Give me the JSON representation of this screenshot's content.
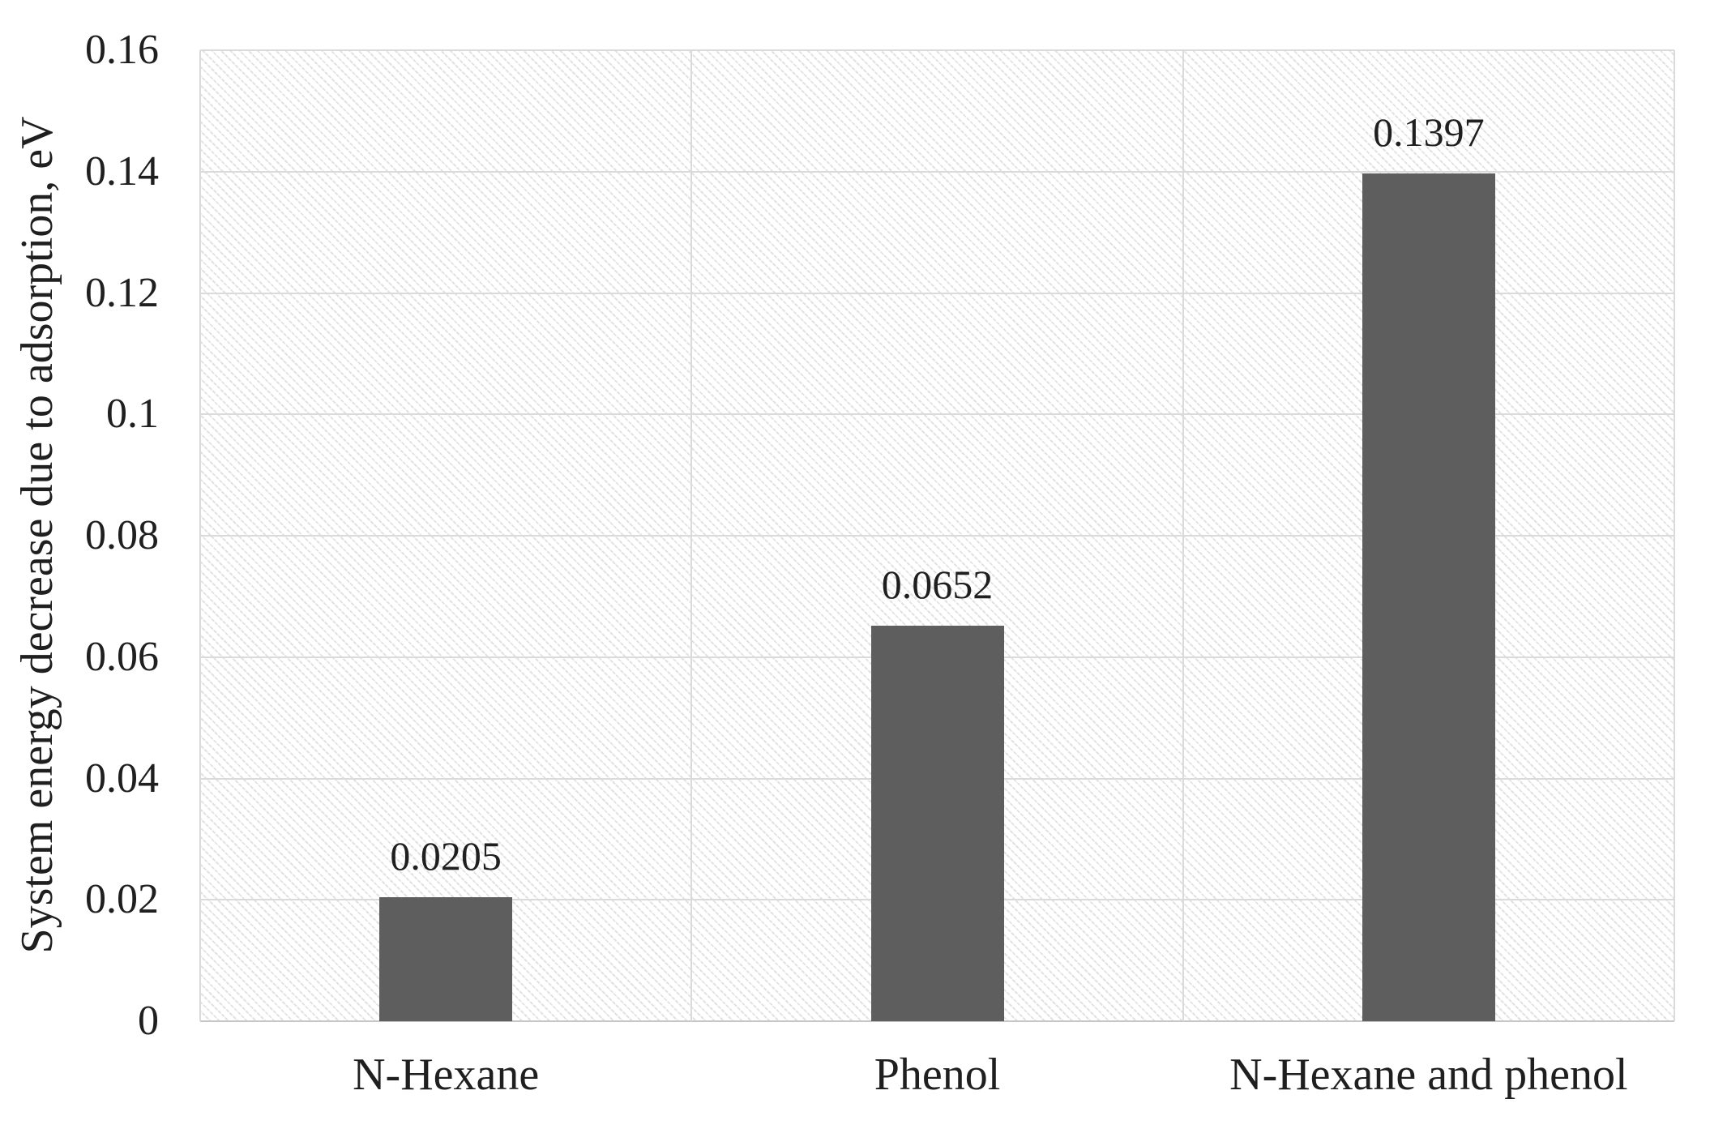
{
  "chart_data": {
    "type": "bar",
    "title": "",
    "xlabel": "",
    "ylabel": "System energy decrease due to adsorption, eV",
    "categories": [
      "N-Hexane",
      "Phenol",
      "N-Hexane and phenol"
    ],
    "values": [
      0.0205,
      0.0652,
      0.1397
    ],
    "value_labels": [
      "0.0205",
      "0.0652",
      "0.1397"
    ],
    "ylim": [
      0,
      0.16
    ],
    "ytick_labels": [
      "0",
      "0.02",
      "0.04",
      "0.06",
      "0.08",
      "0.1",
      "0.12",
      "0.14",
      "0.16"
    ],
    "ytick_values": [
      0,
      0.02,
      0.04,
      0.06,
      0.08,
      0.1,
      0.12,
      0.14,
      0.16
    ],
    "grid": "horizontal gridlines at each y tick, vertical gridlines at category boundaries",
    "legend": "none",
    "plot_background": "light diagonal hatch pattern",
    "colors": {
      "bar_fill": "#5e5e5e",
      "gridline": "#dadada",
      "axis_line": "#c6c6c6",
      "text": "#1f1f1f",
      "hatch_line": "#e3e3e3",
      "background": "#ffffff"
    }
  }
}
